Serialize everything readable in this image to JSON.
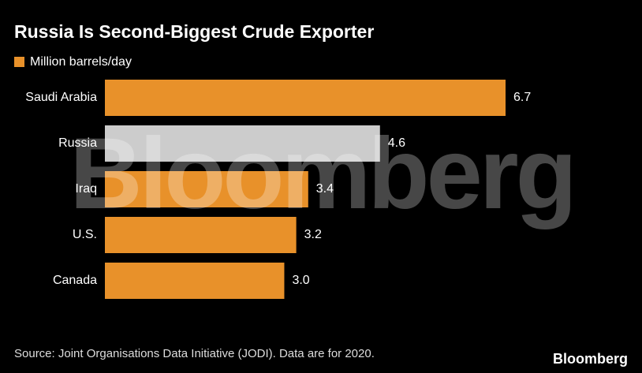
{
  "chart_data": {
    "type": "barh",
    "title": "Russia Is Second-Biggest Crude Exporter",
    "categories": [
      "Saudi Arabia",
      "Russia",
      "Iraq",
      "U.S.",
      "Canada"
    ],
    "series": [
      {
        "name": "Million barrels/day",
        "color": "#e8912a",
        "values": [
          6.7,
          4.6,
          3.4,
          3.2,
          3.0
        ],
        "value_labels": [
          "6.7",
          "4.6",
          "3.4",
          "3.2",
          "3.0"
        ],
        "colors": [
          "#e8912a",
          "#cccccc",
          "#e8912a",
          "#e8912a",
          "#e8912a"
        ]
      }
    ],
    "source": "Source: Joint Organisations Data Initiative (JODI). Data are for 2020.",
    "watermark": "Bloomberg",
    "logo": "Bloomberg"
  }
}
